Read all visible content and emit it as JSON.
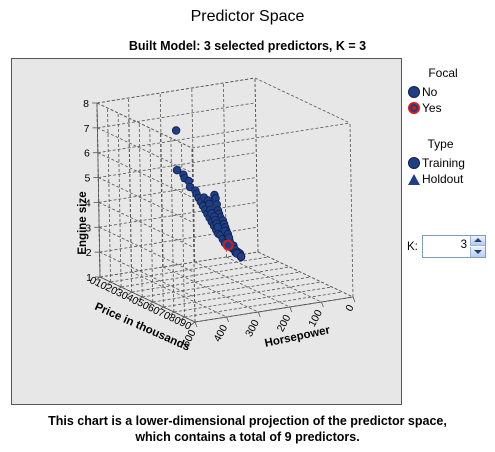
{
  "title": "Predictor Space",
  "subtitle": "Built Model: 3 selected predictors, K = 3",
  "legend": {
    "focal": {
      "title": "Focal",
      "items": [
        "No",
        "Yes"
      ]
    },
    "type": {
      "title": "Type",
      "items": [
        "Training",
        "Holdout"
      ]
    }
  },
  "k_control": {
    "label": "K:",
    "value": "3"
  },
  "footnote_line1": "This chart is a lower-dimensional projection of the predictor space,",
  "footnote_line2": "which contains a total of 9 predictors.",
  "colors": {
    "point_fill": "#1f3f85",
    "focal_ring": "#d81a1a",
    "plot_bg": "#e7e7e7"
  },
  "chart_data": {
    "type": "scatter",
    "dimensions": 3,
    "title": "Predictor Space",
    "subtitle": "Built Model: 3 selected predictors, K = 3",
    "axes": {
      "x": {
        "label": "Price in thousands",
        "ticks": [
          "0",
          "10",
          "20",
          "30",
          "40",
          "50",
          "60",
          "70",
          "80",
          "90"
        ],
        "range": [
          0,
          90
        ]
      },
      "y": {
        "label": "Horsepower",
        "ticks": [
          "0",
          "100",
          "200",
          "300",
          "400",
          "500"
        ],
        "range": [
          0,
          500
        ]
      },
      "z": {
        "label": "Engine size",
        "ticks": [
          "1",
          "2",
          "3",
          "4",
          "5",
          "6",
          "7",
          "8"
        ],
        "range": [
          1,
          8
        ]
      }
    },
    "grid": true,
    "legend_position": "right",
    "focal_point": {
      "price": 20,
      "horsepower": 160,
      "engine": 2.0
    },
    "neighbor_points": [
      {
        "price": 22,
        "horsepower": 175,
        "engine": 2.2
      },
      {
        "price": 21,
        "horsepower": 165,
        "engine": 2.4
      },
      {
        "price": 24,
        "horsepower": 190,
        "engine": 2.3
      }
    ],
    "series": [
      {
        "name": "Training",
        "points": [
          {
            "price": 60,
            "horsepower": 450,
            "engine": 8.0
          },
          {
            "price": 45,
            "horsepower": 400,
            "engine": 6.0
          },
          {
            "price": 42,
            "horsepower": 370,
            "engine": 5.7
          },
          {
            "price": 40,
            "horsepower": 360,
            "engine": 5.5
          },
          {
            "price": 38,
            "horsepower": 340,
            "engine": 5.3
          },
          {
            "price": 36,
            "horsepower": 330,
            "engine": 5.0
          },
          {
            "price": 35,
            "horsepower": 310,
            "engine": 4.8
          },
          {
            "price": 33,
            "horsepower": 300,
            "engine": 4.6
          },
          {
            "price": 32,
            "horsepower": 290,
            "engine": 4.4
          },
          {
            "price": 31,
            "horsepower": 280,
            "engine": 4.2
          },
          {
            "price": 30,
            "horsepower": 270,
            "engine": 4.0
          },
          {
            "price": 29,
            "horsepower": 260,
            "engine": 3.8
          },
          {
            "price": 28,
            "horsepower": 250,
            "engine": 3.6
          },
          {
            "price": 27,
            "horsepower": 240,
            "engine": 3.4
          },
          {
            "price": 26,
            "horsepower": 230,
            "engine": 3.2
          },
          {
            "price": 25,
            "horsepower": 220,
            "engine": 3.0
          },
          {
            "price": 24,
            "horsepower": 210,
            "engine": 2.8
          },
          {
            "price": 23,
            "horsepower": 200,
            "engine": 2.6
          },
          {
            "price": 22,
            "horsepower": 190,
            "engine": 2.5
          },
          {
            "price": 21,
            "horsepower": 180,
            "engine": 2.3
          },
          {
            "price": 20,
            "horsepower": 170,
            "engine": 2.1
          },
          {
            "price": 19,
            "horsepower": 160,
            "engine": 2.0
          },
          {
            "price": 18,
            "horsepower": 150,
            "engine": 1.9
          },
          {
            "price": 17,
            "horsepower": 140,
            "engine": 1.8
          },
          {
            "price": 16,
            "horsepower": 130,
            "engine": 1.7
          },
          {
            "price": 15,
            "horsepower": 120,
            "engine": 1.6
          },
          {
            "price": 14,
            "horsepower": 110,
            "engine": 1.5
          },
          {
            "price": 13,
            "horsepower": 100,
            "engine": 1.4
          },
          {
            "price": 12,
            "horsepower": 95,
            "engine": 1.3
          },
          {
            "price": 11,
            "horsepower": 90,
            "engine": 1.2
          },
          {
            "price": 35,
            "horsepower": 250,
            "engine": 4.5
          },
          {
            "price": 33,
            "horsepower": 240,
            "engine": 4.3
          },
          {
            "price": 31,
            "horsepower": 230,
            "engine": 4.0
          },
          {
            "price": 29,
            "horsepower": 220,
            "engine": 3.7
          },
          {
            "price": 27,
            "horsepower": 210,
            "engine": 3.5
          },
          {
            "price": 25,
            "horsepower": 200,
            "engine": 3.3
          },
          {
            "price": 23,
            "horsepower": 185,
            "engine": 3.1
          },
          {
            "price": 21,
            "horsepower": 175,
            "engine": 2.9
          },
          {
            "price": 19,
            "horsepower": 165,
            "engine": 2.7
          },
          {
            "price": 17,
            "horsepower": 155,
            "engine": 2.5
          },
          {
            "price": 15,
            "horsepower": 145,
            "engine": 2.3
          },
          {
            "price": 13,
            "horsepower": 135,
            "engine": 2.1
          },
          {
            "price": 11,
            "horsepower": 125,
            "engine": 1.9
          },
          {
            "price": 28,
            "horsepower": 195,
            "engine": 2.8
          },
          {
            "price": 26,
            "horsepower": 180,
            "engine": 2.6
          },
          {
            "price": 24,
            "horsepower": 170,
            "engine": 2.4
          },
          {
            "price": 22,
            "horsepower": 150,
            "engine": 2.0
          },
          {
            "price": 20,
            "horsepower": 140,
            "engine": 1.8
          },
          {
            "price": 18,
            "horsepower": 130,
            "engine": 1.6
          },
          {
            "price": 16,
            "horsepower": 120,
            "engine": 1.5
          },
          {
            "price": 14,
            "horsepower": 100,
            "engine": 1.3
          },
          {
            "price": 40,
            "horsepower": 300,
            "engine": 4.6
          },
          {
            "price": 38,
            "horsepower": 280,
            "engine": 4.4
          },
          {
            "price": 36,
            "horsepower": 270,
            "engine": 4.2
          },
          {
            "price": 34,
            "horsepower": 260,
            "engine": 3.9
          },
          {
            "price": 32,
            "horsepower": 250,
            "engine": 3.7
          },
          {
            "price": 30,
            "horsepower": 235,
            "engine": 3.5
          },
          {
            "price": 28,
            "horsepower": 225,
            "engine": 3.3
          },
          {
            "price": 26,
            "horsepower": 215,
            "engine": 3.1
          },
          {
            "price": 24,
            "horsepower": 205,
            "engine": 2.9
          }
        ]
      },
      {
        "name": "Holdout",
        "points": []
      }
    ]
  }
}
